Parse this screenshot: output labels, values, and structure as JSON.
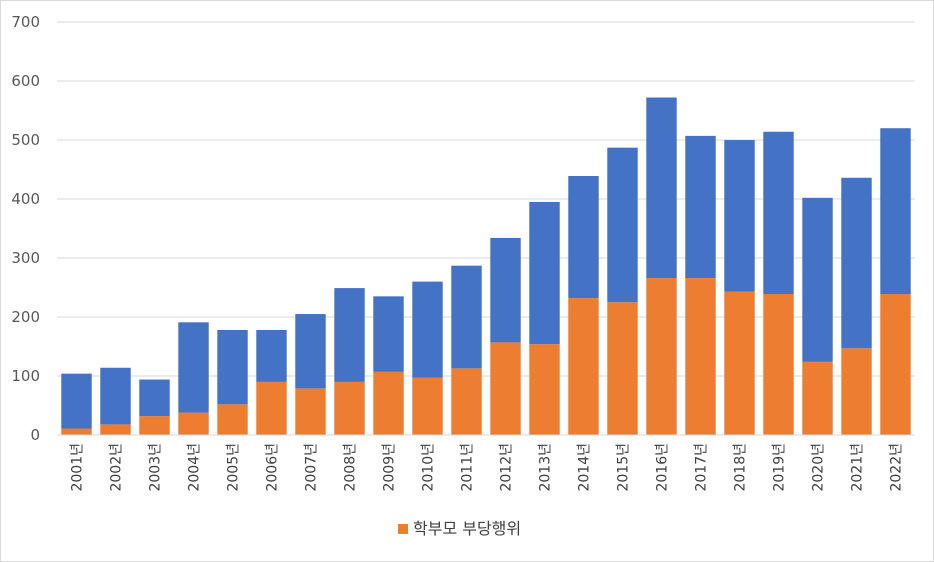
{
  "chart_data": {
    "type": "bar",
    "stacked": true,
    "categories": [
      "2001년",
      "2002년",
      "2003년",
      "2004년",
      "2005년",
      "2006년",
      "2007년",
      "2008년",
      "2009년",
      "2010년",
      "2011년",
      "2012년",
      "2013년",
      "2014년",
      "2015년",
      "2016년",
      "2017년",
      "2018년",
      "2019년",
      "2020년",
      "2021년",
      "2022년"
    ],
    "series": [
      {
        "name": "학부모 부당행위",
        "color": "#ed7d31",
        "values": [
          11,
          18,
          32,
          38,
          52,
          90,
          79,
          90,
          107,
          97,
          113,
          157,
          154,
          232,
          225,
          266,
          266,
          243,
          239,
          124,
          147,
          239
        ]
      },
      {
        "name": "",
        "color": "#4472c4",
        "values": [
          93,
          96,
          62,
          153,
          126,
          88,
          126,
          159,
          128,
          163,
          174,
          177,
          241,
          207,
          262,
          306,
          241,
          257,
          275,
          278,
          289,
          281
        ]
      }
    ],
    "ylim": [
      0,
      700
    ],
    "yticks": [
      0,
      100,
      200,
      300,
      400,
      500,
      600,
      700
    ],
    "grid": true,
    "legend": {
      "position": "bottom",
      "entries": [
        "학부모 부당행위"
      ]
    }
  }
}
